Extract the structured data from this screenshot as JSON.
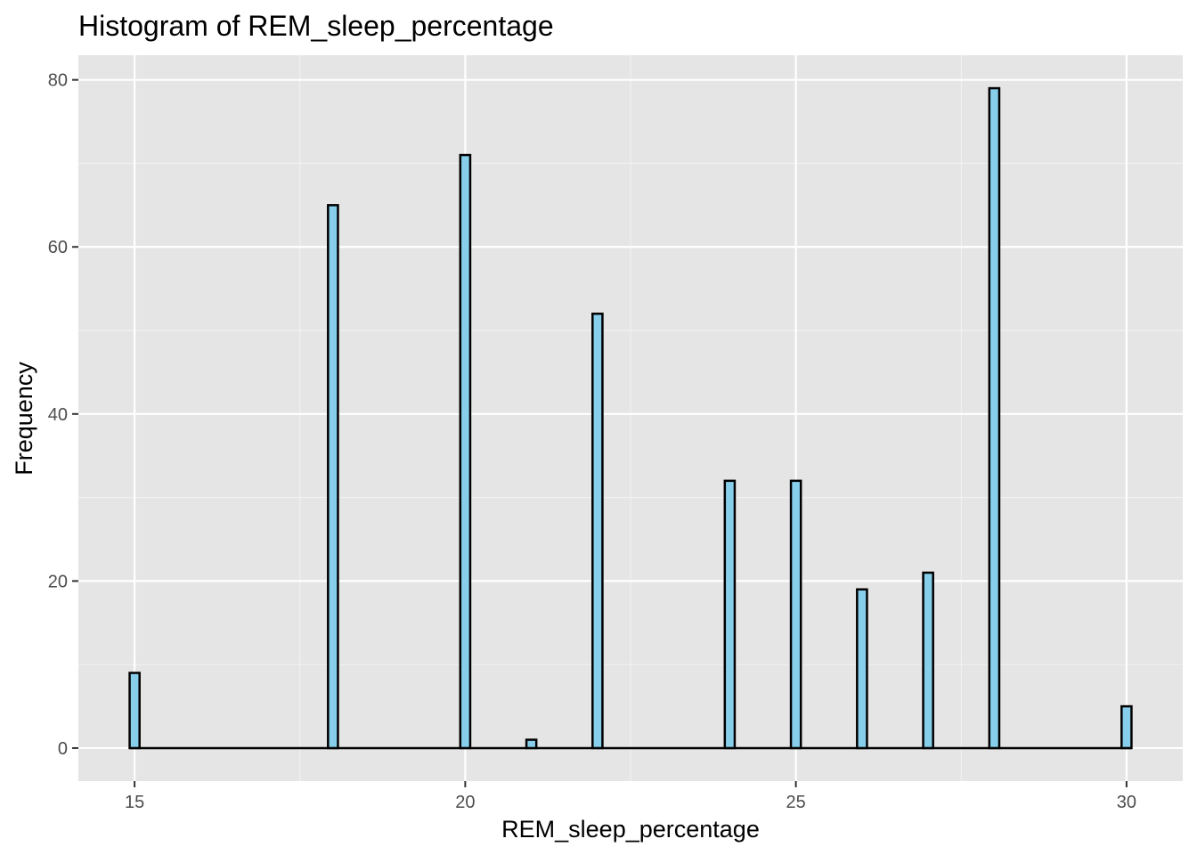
{
  "chart_data": {
    "type": "bar",
    "title": "Histogram of REM_sleep_percentage",
    "xlabel": "REM_sleep_percentage",
    "ylabel": "Frequency",
    "x_ticks": [
      15,
      20,
      25,
      30
    ],
    "y_ticks": [
      0,
      20,
      40,
      60,
      80
    ],
    "xlim": [
      14.15,
      30.85
    ],
    "ylim": [
      -3.95,
      82.95
    ],
    "bin_width": 0.15,
    "grid": true,
    "legend": "none",
    "bars": [
      {
        "x": 15,
        "count": 9
      },
      {
        "x": 18,
        "count": 65
      },
      {
        "x": 20,
        "count": 71
      },
      {
        "x": 21,
        "count": 1
      },
      {
        "x": 22,
        "count": 52
      },
      {
        "x": 24,
        "count": 32
      },
      {
        "x": 25,
        "count": 32
      },
      {
        "x": 26,
        "count": 19
      },
      {
        "x": 27,
        "count": 21
      },
      {
        "x": 28,
        "count": 79
      },
      {
        "x": 30,
        "count": 5
      }
    ],
    "colors": {
      "bar_fill": "#87ceeb",
      "bar_outline": "#000000",
      "panel_background": "#e5e5e5",
      "grid_major": "#ffffff",
      "grid_minor": "#f2f2f2"
    }
  }
}
